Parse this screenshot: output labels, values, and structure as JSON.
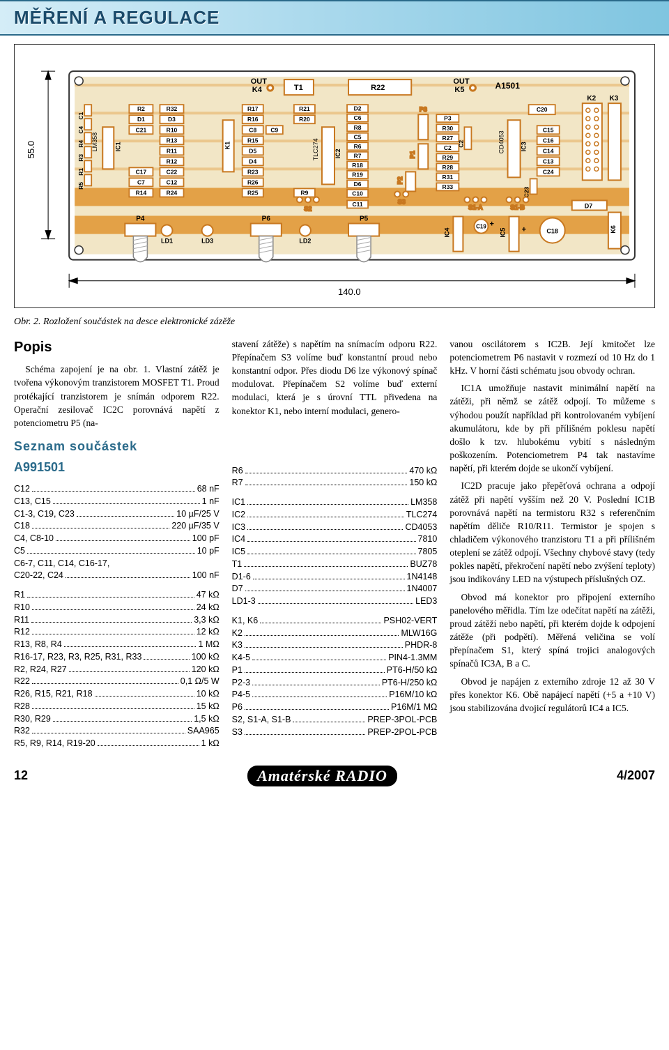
{
  "header": {
    "title": "MĚŘENÍ A REGULACE"
  },
  "pcb": {
    "width_mm": "140.0",
    "height_mm": "55.0",
    "board_fill": "#f2e6c6",
    "copper": "#e29a3a",
    "copper_dark": "#c87820",
    "outline": "#2a2a2a",
    "labels_top": [
      "OUT K4",
      "T1",
      "R22",
      "OUT K5",
      "A1501"
    ],
    "left_col": [
      "C1",
      "C4",
      "R4",
      "R3",
      "R1",
      "R5"
    ],
    "col2": [
      "R2",
      "D1",
      "C21",
      "",
      "",
      "",
      "C17",
      "C7",
      "R14"
    ],
    "col3": [
      "R32",
      "D3",
      "R10",
      "R13",
      "R11",
      "R12",
      "C22",
      "C12",
      "R24"
    ],
    "col4": [
      "R17",
      "R16",
      "C8",
      "R15",
      "D5",
      "D4",
      "R23",
      "R26",
      "R25"
    ],
    "col4b": [
      "",
      "",
      "C9",
      "",
      "",
      "",
      "",
      "",
      ""
    ],
    "col5": [
      "R21",
      "R20",
      "",
      "",
      "",
      "",
      "",
      "",
      "R9"
    ],
    "col6": [
      "D2",
      "C6",
      "R8",
      "C5",
      "R6",
      "R7",
      "R18",
      "R19",
      "D6",
      "C10"
    ],
    "right_block": [
      "P3",
      "R30",
      "R27",
      "C2",
      "R29",
      "R28",
      "R31",
      "R33"
    ],
    "misc": [
      "P1",
      "P2",
      "S3",
      "S2",
      "C11",
      "C19",
      "C20",
      "C23",
      "C24",
      "C13",
      "C14",
      "C15",
      "C16",
      "C18",
      "S1-A",
      "S1-B",
      "D7",
      "K2",
      "K3",
      "K6",
      "IC1",
      "IC2",
      "IC3",
      "IC4",
      "IC5"
    ],
    "bottom": [
      "P4",
      "LD1",
      "LD3",
      "P6",
      "LD2",
      "P5"
    ],
    "ics": {
      "ic1": "LM358",
      "ic2": "TLC274",
      "ic3": "CD4053"
    }
  },
  "caption": "Obr. 2. Rozložení součástek na desce elektronické zázěže",
  "popis": {
    "heading": "Popis",
    "para1": "Schéma zapojení je na obr. 1. Vlastní zátěž je tvořena výkonovým tranzistorem MOSFET T1. Proud protékající tranzistorem je snímán odporem R22. Operační zesilovač IC2C porovnává napětí z potenciometru P5 (na-"
  },
  "parts": {
    "heading": "Seznam součástek",
    "sub": "A991501",
    "col1": [
      {
        "l": "C12",
        "v": "68 nF"
      },
      {
        "l": "C13, C15",
        "v": "1 nF"
      },
      {
        "l": "C1-3, C19, C23",
        "v": "10 µF/25 V"
      },
      {
        "l": "C18",
        "v": "220 µF/35 V"
      },
      {
        "l": "C4, C8-10",
        "v": "100 pF"
      },
      {
        "l": "C5",
        "v": "10 pF"
      },
      {
        "l": "C6-7, C11, C14, C16-17,",
        "v": ""
      },
      {
        "l": "C20-22, C24",
        "v": "100 nF"
      },
      {
        "l": "",
        "v": ""
      },
      {
        "l": "R1",
        "v": "47 kΩ"
      },
      {
        "l": "R10",
        "v": "24 kΩ"
      },
      {
        "l": "R11",
        "v": "3,3 kΩ"
      },
      {
        "l": "R12",
        "v": "12 kΩ"
      },
      {
        "l": "R13, R8, R4",
        "v": "1 MΩ"
      },
      {
        "l": "R16-17, R23, R3, R25, R31, R33",
        "v": "100 kΩ"
      },
      {
        "l": "R2, R24, R27",
        "v": "120 kΩ"
      },
      {
        "l": "R22",
        "v": "0,1 Ω/5 W"
      },
      {
        "l": "R26, R15, R21, R18",
        "v": "10 kΩ"
      },
      {
        "l": "R28",
        "v": "15 kΩ"
      },
      {
        "l": "R30, R29",
        "v": "1,5 kΩ"
      },
      {
        "l": "R32",
        "v": "SAA965"
      },
      {
        "l": "R5, R9, R14, R19-20",
        "v": "1 kΩ"
      }
    ],
    "col2": [
      {
        "l": "R6",
        "v": "470 kΩ"
      },
      {
        "l": "R7",
        "v": "150 kΩ"
      },
      {
        "l": "",
        "v": ""
      },
      {
        "l": "IC1",
        "v": "LM358"
      },
      {
        "l": "IC2",
        "v": "TLC274"
      },
      {
        "l": "IC3",
        "v": "CD4053"
      },
      {
        "l": "IC4",
        "v": "7810"
      },
      {
        "l": "IC5",
        "v": "7805"
      },
      {
        "l": "T1",
        "v": "BUZ78"
      },
      {
        "l": "D1-6",
        "v": "1N4148"
      },
      {
        "l": "D7",
        "v": "1N4007"
      },
      {
        "l": "LD1-3",
        "v": "LED3"
      },
      {
        "l": "",
        "v": ""
      },
      {
        "l": "K1, K6",
        "v": "PSH02-VERT"
      },
      {
        "l": "K2",
        "v": "MLW16G"
      },
      {
        "l": "K3",
        "v": "PHDR-8"
      },
      {
        "l": "K4-5",
        "v": "PIN4-1.3MM"
      },
      {
        "l": "P1",
        "v": "PT6-H/50 kΩ"
      },
      {
        "l": "P2-3",
        "v": "PT6-H/250 kΩ"
      },
      {
        "l": "P4-5",
        "v": "P16M/10 kΩ"
      },
      {
        "l": "P6",
        "v": "P16M/1 MΩ"
      },
      {
        "l": "S2, S1-A, S1-B",
        "v": "PREP-3POL-PCB"
      },
      {
        "l": "S3",
        "v": "PREP-2POL-PCB"
      }
    ]
  },
  "middle_text": "stavení zátěže) s napětím na snímacím odporu R22. Přepínačem S3 volíme buď konstantní proud nebo konstantní odpor. Přes diodu D6 lze výkonový spínač modulovat. Přepínačem S2 volíme buď externí modulaci, která je s úrovní TTL přivedena na konektor K1, nebo interní modulaci, genero-",
  "right_text": {
    "p1": "vanou oscilátorem s IC2B. Její kmitočet lze potenciometrem P6 nastavit v rozmezí od 10 Hz do 1 kHz. V horní části schématu jsou obvody ochran.",
    "p2": "IC1A umožňuje nastavit minimální napětí na zátěži, při němž se zátěž odpojí. To můžeme s výhodou použít například při kontrolovaném vybíjení akumulátoru, kde by při přílišném poklesu napětí došlo k tzv. hlubokému vybití s následným poškozením. Potenciometrem P4 tak nastavíme napětí, při kterém dojde se ukončí vybíjení.",
    "p3": "IC2D pracuje jako přepěťová ochrana a odpojí zátěž při napětí vyšším než 20 V. Poslední IC1B porovnává napětí na termistoru R32 s referenčním napětím děliče R10/R11. Termistor je spojen s chladičem výkonového tranzistoru T1 a při přílišném oteplení se zátěž odpojí. Všechny chybové stavy (tedy pokles napětí, překročení napětí nebo zvýšení teploty) jsou indikovány LED na výstupech příslušných OZ.",
    "p4": "Obvod má konektor pro připojení externího panelového měřidla. Tím lze odečítat napětí na zátěži, proud zátěží nebo napětí, při kterém dojde k odpojení zátěže (při podpětí). Měřená veličina se volí přepínačem S1, který spíná trojici analogových spínačů IC3A, B a C.",
    "p5": "Obvod je napájen z externího zdroje 12 až 30 V přes konektor K6. Obě napájecí napětí (+5 a +10 V) jsou stabilizována dvojicí regulátorů IC4 a IC5."
  },
  "footer": {
    "page": "12",
    "logo": "Amatérské RADIO",
    "issue": "4/2007"
  }
}
